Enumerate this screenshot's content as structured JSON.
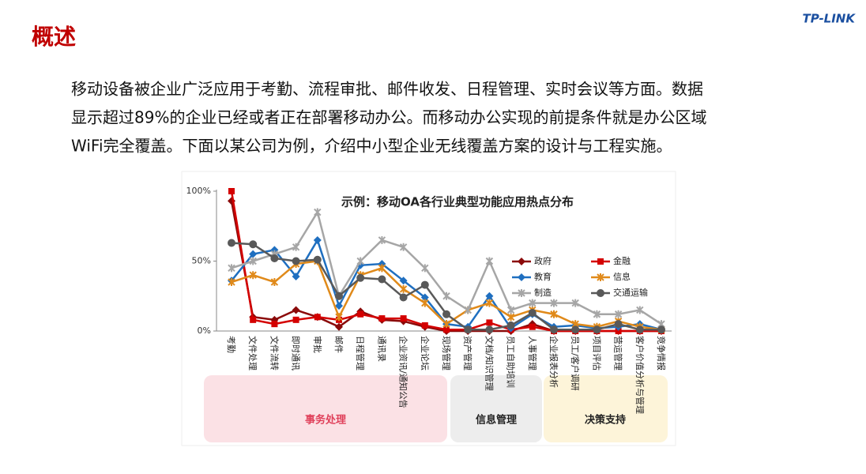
{
  "slide": {
    "title": "概述",
    "logo": "TP-LINK",
    "paragraph": [
      "移动设备被企业广泛应用于考勤、流程审批、邮件收发、日程管理、实时会议等方面。数据",
      "显示超过89%的企业已经或者正在部署移动办公。而移动办公实现的前提条件就是办公区域",
      "WiFi完全覆盖。下面以某公司为例，介绍中小型企业无线覆盖方案的设计与工程实施。"
    ]
  },
  "chart_data": {
    "type": "line",
    "title": "示例：移动OA各行业典型功能应用热点分布",
    "categories": [
      "考勤",
      "文件处理",
      "文件流转",
      "即时通讯",
      "审批",
      "邮件",
      "日程管理",
      "通讯录",
      "企业资讯/通知公告",
      "企业论坛",
      "现场管理",
      "资产管理",
      "文档/知识管理",
      "员工自助培训",
      "人事管理",
      "企业报表分析",
      "员工/客户调研",
      "项目评估",
      "营运管理",
      "客户价值分析与管理",
      "竞争情报"
    ],
    "groups": [
      "事务处理",
      "信息管理",
      "决策支持"
    ],
    "ylim": [
      0,
      100
    ],
    "yticks": [
      {
        "value": 0,
        "label": "0%"
      },
      {
        "value": 50,
        "label": "50%"
      },
      {
        "value": 100,
        "label": "100%"
      }
    ],
    "series": [
      {
        "name": "政府",
        "color": "#8b0a0a",
        "marker": "diamond",
        "values": [
          93,
          10,
          8,
          15,
          10,
          3,
          14,
          8,
          7,
          3,
          0,
          0,
          0,
          0,
          5,
          0,
          0,
          0,
          0,
          0,
          0
        ]
      },
      {
        "name": "金融",
        "color": "#d40000",
        "marker": "square",
        "values": [
          100,
          8,
          5,
          8,
          10,
          8,
          12,
          9,
          9,
          4,
          1,
          1,
          6,
          1,
          3,
          0,
          0,
          0,
          0,
          0,
          0
        ]
      },
      {
        "name": "教育",
        "color": "#1f6fc0",
        "marker": "diamond",
        "values": [
          36,
          55,
          58,
          39,
          65,
          18,
          47,
          48,
          36,
          24,
          5,
          3,
          25,
          2,
          12,
          3,
          4,
          2,
          3,
          5,
          1
        ]
      },
      {
        "name": "信息",
        "color": "#e08a1a",
        "marker": "x",
        "values": [
          35,
          40,
          35,
          48,
          50,
          10,
          40,
          45,
          30,
          20,
          5,
          15,
          20,
          10,
          15,
          12,
          5,
          3,
          7,
          3,
          1
        ]
      },
      {
        "name": "制造",
        "color": "#a6a6a6",
        "marker": "x",
        "values": [
          45,
          50,
          55,
          60,
          85,
          25,
          50,
          65,
          60,
          45,
          25,
          15,
          50,
          15,
          20,
          20,
          20,
          12,
          12,
          15,
          5
        ]
      },
      {
        "name": "交通运输",
        "color": "#595959",
        "marker": "circle",
        "values": [
          63,
          62,
          52,
          50,
          51,
          25,
          38,
          37,
          24,
          33,
          12,
          1,
          1,
          4,
          13,
          1,
          1,
          1,
          5,
          1,
          1
        ]
      }
    ]
  }
}
